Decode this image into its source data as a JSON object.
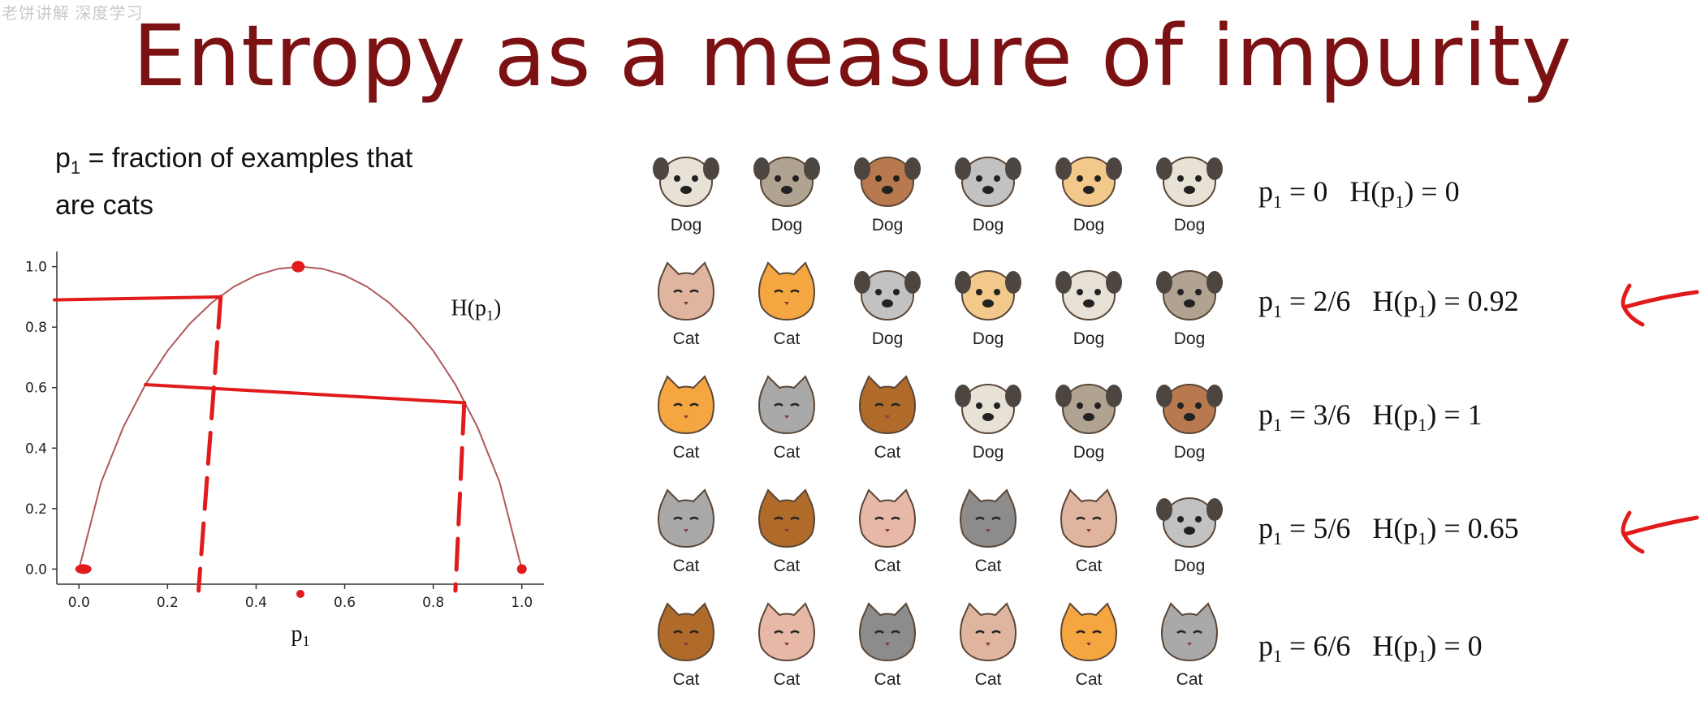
{
  "watermark": "老饼讲解 深度学习",
  "title": "Entropy as a measure of impurity",
  "definition": {
    "var": "p",
    "sub": "1",
    "line1_rest": " = fraction of examples that",
    "line2": "are cats"
  },
  "chart_data": {
    "type": "line",
    "x": [
      0.0,
      0.05,
      0.1,
      0.15,
      0.2,
      0.25,
      0.3,
      0.35,
      0.4,
      0.45,
      0.5,
      0.55,
      0.6,
      0.65,
      0.7,
      0.75,
      0.8,
      0.85,
      0.9,
      0.95,
      1.0
    ],
    "y": [
      0.0,
      0.286,
      0.469,
      0.61,
      0.722,
      0.811,
      0.881,
      0.934,
      0.971,
      0.993,
      1.0,
      0.993,
      0.971,
      0.934,
      0.881,
      0.811,
      0.722,
      0.61,
      0.469,
      0.286,
      0.0
    ],
    "series_label": "H(p1)",
    "xlabel": "p1",
    "xlim": [
      -0.05,
      1.05
    ],
    "ylim": [
      -0.05,
      1.05
    ],
    "xticks": [
      "0.0",
      "0.2",
      "0.4",
      "0.6",
      "0.8",
      "1.0"
    ],
    "yticks": [
      "0.0",
      "0.2",
      "0.4",
      "0.6",
      "0.8",
      "1.0"
    ],
    "line_color": "#b0585d",
    "annotation_color": "#e11b1b",
    "grid": false
  },
  "rows": [
    {
      "labels": [
        "Dog",
        "Dog",
        "Dog",
        "Dog",
        "Dog",
        "Dog"
      ],
      "p": "0",
      "H": "0"
    },
    {
      "labels": [
        "Cat",
        "Cat",
        "Dog",
        "Dog",
        "Dog",
        "Dog"
      ],
      "p": "2/6",
      "H": "0.92"
    },
    {
      "labels": [
        "Cat",
        "Cat",
        "Cat",
        "Dog",
        "Dog",
        "Dog"
      ],
      "p": "3/6",
      "H": "1"
    },
    {
      "labels": [
        "Cat",
        "Cat",
        "Cat",
        "Cat",
        "Cat",
        "Dog"
      ],
      "p": "5/6",
      "H": "0.65"
    },
    {
      "labels": [
        "Cat",
        "Cat",
        "Cat",
        "Cat",
        "Cat",
        "Cat"
      ],
      "p": "6/6",
      "H": "0"
    }
  ],
  "eq": {
    "p": "p",
    "sub": "1",
    "H": "H(p",
    "close": ")",
    "eq": " = "
  },
  "colors": {
    "title": "#7b1113",
    "annotation": "#e11b1b"
  }
}
